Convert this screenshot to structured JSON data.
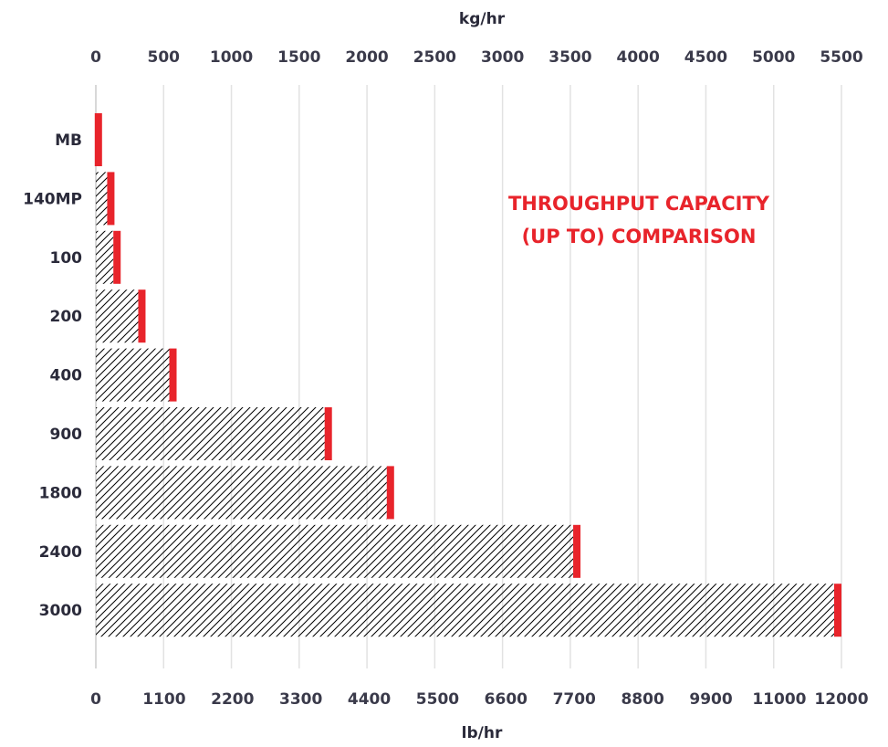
{
  "chart_data": {
    "type": "bar",
    "orientation": "horizontal",
    "categories": [
      "MB",
      "140MP",
      "100",
      "200",
      "400",
      "900",
      "1800",
      "2400",
      "3000"
    ],
    "series": [
      {
        "values": [
          100,
          300,
          400,
          800,
          1300,
          3800,
          4800,
          7800,
          12000
        ]
      }
    ],
    "xlabel": "lb/hr",
    "xlim": [
      0,
      12000
    ],
    "x_ticks": [
      "0",
      "1100",
      "2200",
      "3300",
      "4400",
      "5500",
      "6600",
      "7700",
      "8800",
      "9900",
      "11000",
      "12000"
    ],
    "x2label": "kg/hr",
    "x2lim": [
      0,
      5500
    ],
    "x2_ticks": [
      "0",
      "500",
      "1000",
      "1500",
      "2000",
      "2500",
      "3000",
      "3500",
      "4000",
      "4500",
      "5000",
      "5500"
    ],
    "annotation": [
      "THROUGHPUT CAPACITY",
      "(UP TO) COMPARISON"
    ],
    "grid": true,
    "bar_fill": "diagonal-hatch",
    "colors": {
      "accent": "#e8242b",
      "grid": "#e2e2e2",
      "text": "#2a2a3a",
      "hatch": "#000000"
    }
  }
}
